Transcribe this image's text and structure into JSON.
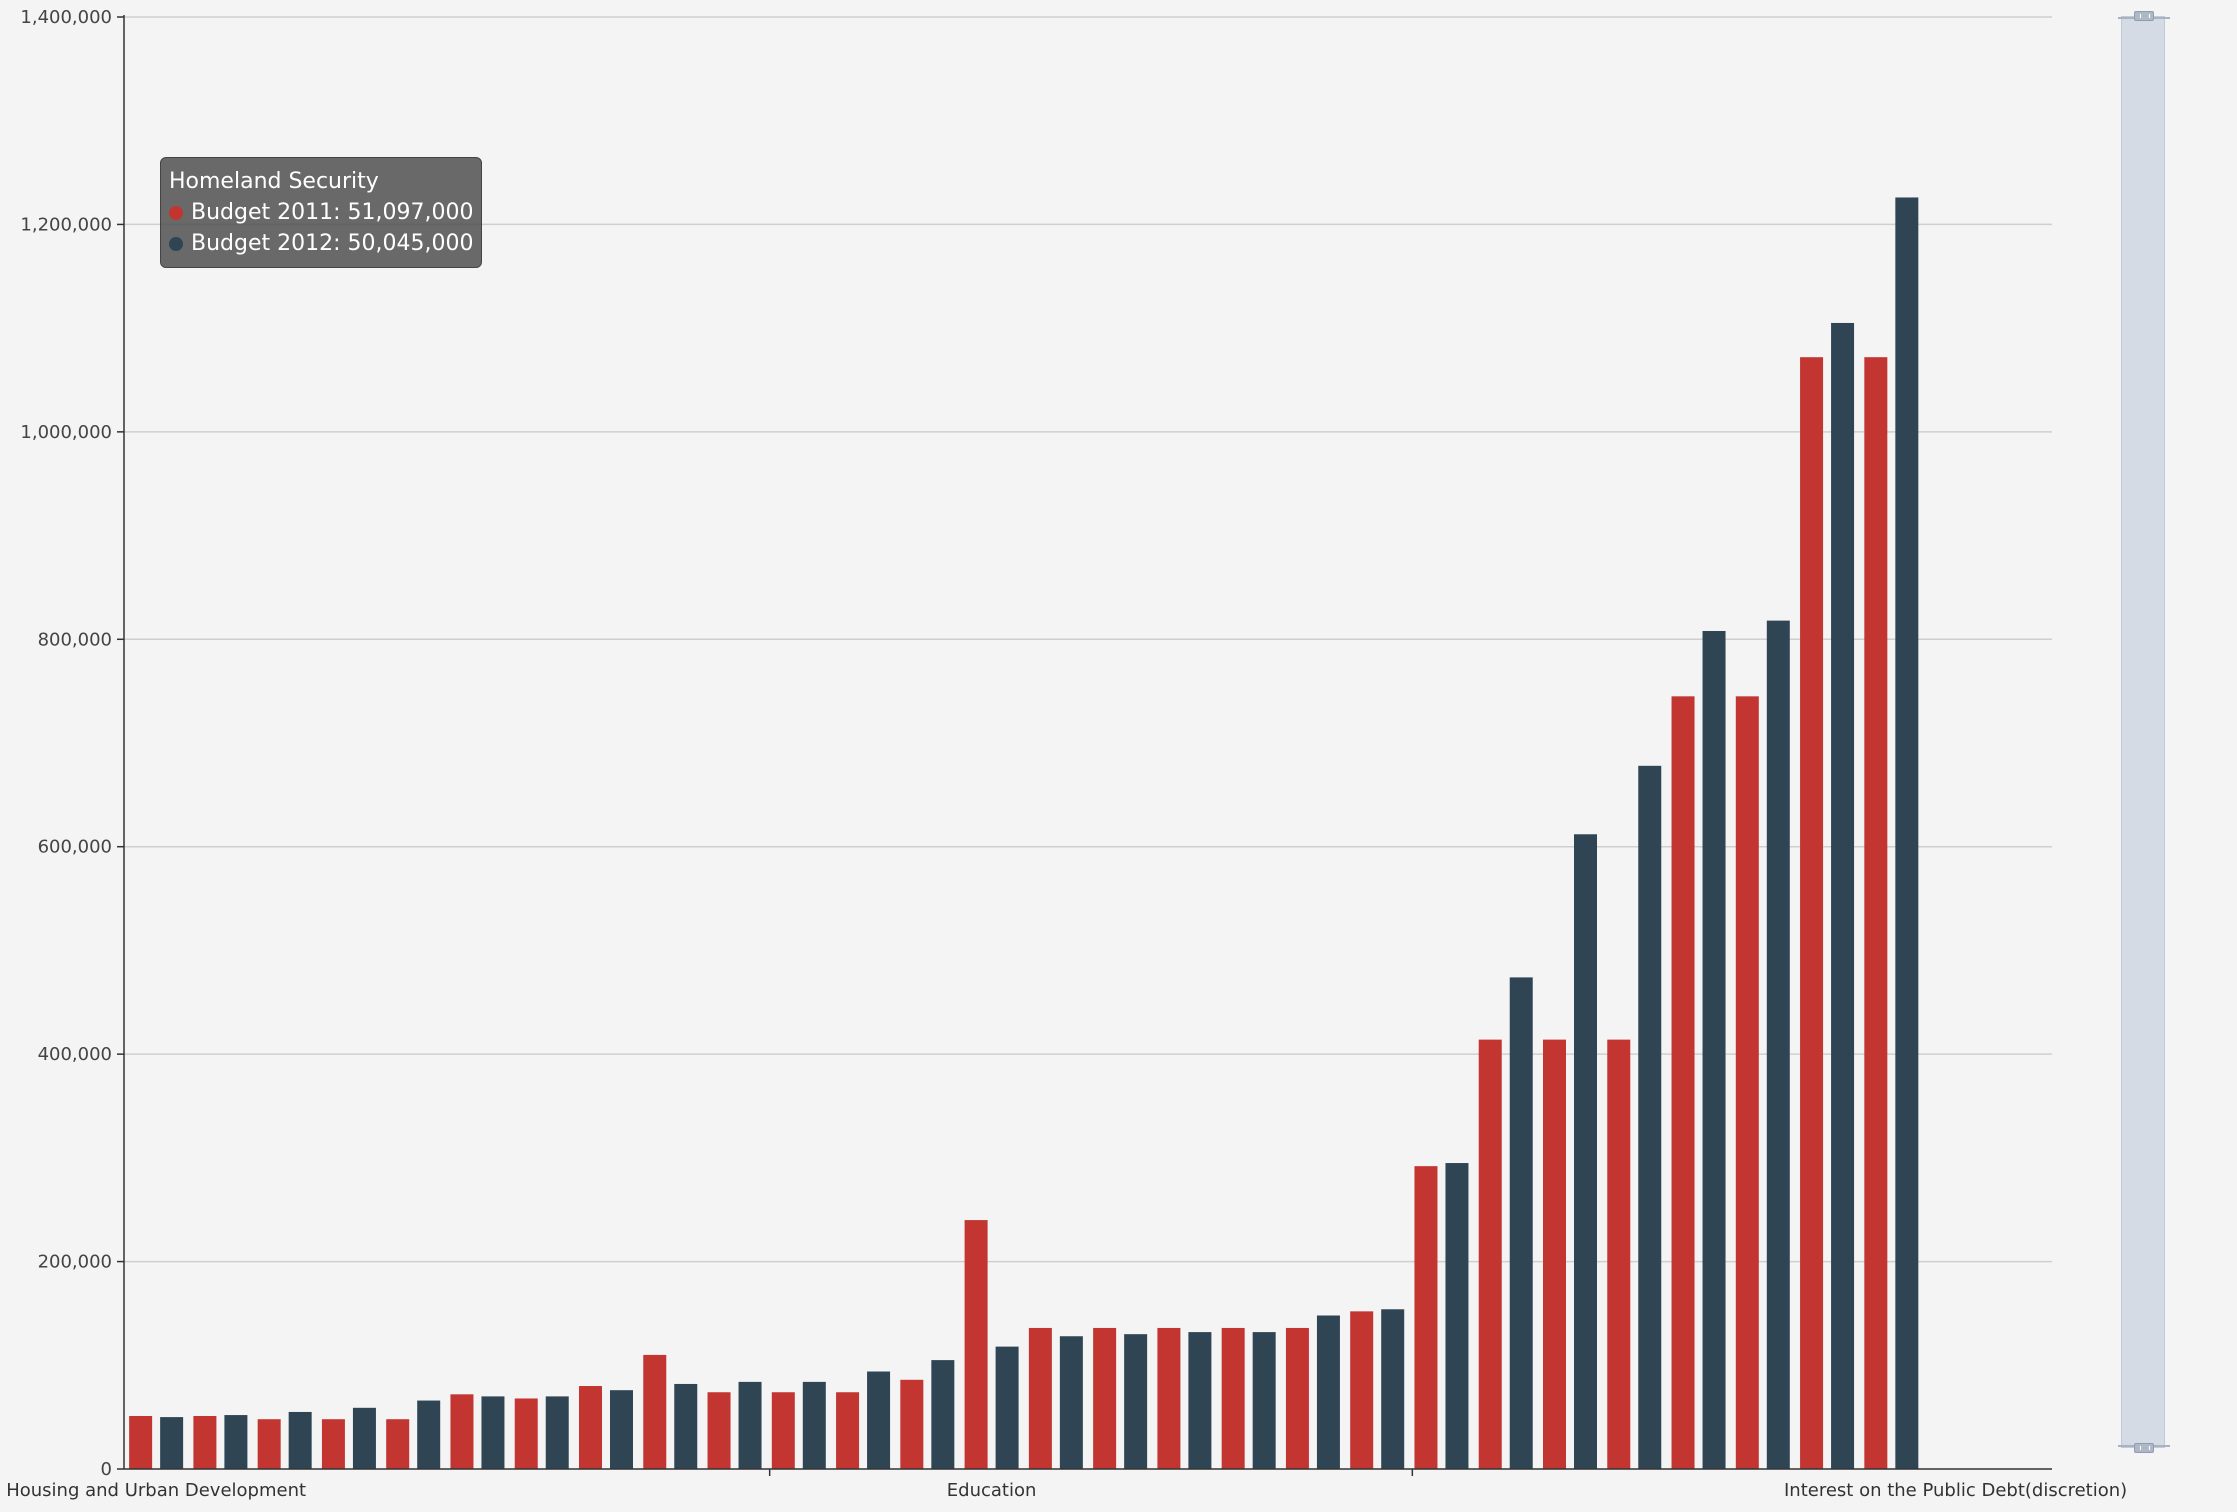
{
  "chart_data": {
    "type": "bar",
    "categories": [
      "Housing and Urban Development",
      "",
      "",
      "",
      "",
      "",
      "",
      "",
      "",
      "",
      "",
      "",
      "",
      "Education",
      "",
      "",
      "",
      "",
      "",
      "",
      "",
      "",
      "",
      "",
      "",
      "",
      "",
      "",
      "Interest on the Public Debt(discretion)",
      ""
    ],
    "series": [
      {
        "name": "Budget 2011",
        "color": "#c23531",
        "values": [
          51097,
          51097,
          48000,
          48000,
          48000,
          72000,
          68000,
          80000,
          110000,
          74000,
          74000,
          74000,
          86000,
          240000,
          136000,
          136000,
          136000,
          136000,
          136000,
          152000,
          292000,
          414000,
          414000,
          414000,
          745000,
          745000,
          1072000,
          1072000,
          null,
          null
        ]
      },
      {
        "name": "Budget 2012",
        "color": "#2f4554",
        "values": [
          50045,
          52000,
          55000,
          59000,
          66000,
          70000,
          70000,
          76000,
          82000,
          84000,
          84000,
          94000,
          105000,
          118000,
          128000,
          130000,
          132000,
          132000,
          148000,
          154000,
          295000,
          474000,
          612000,
          678000,
          808000,
          818000,
          1105000,
          1226000,
          null,
          null
        ]
      }
    ],
    "ylim": [
      0,
      1400000
    ],
    "yticks": [
      "0",
      "200,000",
      "400,000",
      "600,000",
      "800,000",
      "1,000,000",
      "1,200,000",
      "1,400,000"
    ],
    "xtick_labels": [
      "Housing and Urban Development",
      "Education",
      "Interest on the Public Debt(discretion)"
    ],
    "grid": true
  },
  "tooltip": {
    "title": "Homeland Security",
    "line1": "Budget 2011: 51,097,000",
    "line2": "Budget 2012: 50,045,000"
  }
}
